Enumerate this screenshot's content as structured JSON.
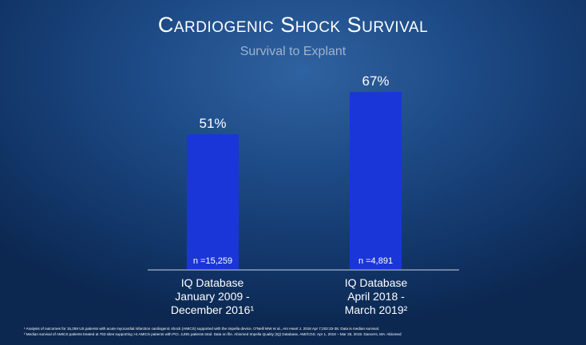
{
  "chart_data": {
    "type": "bar",
    "title": "Cardiogenic Shock Survival",
    "subtitle": "Survival to Explant",
    "categories": [
      "IQ Database\nJanuary 2009 -\nDecember 2016¹",
      "IQ Database\nApril 2018 -\nMarch 2019²"
    ],
    "values": [
      51,
      67
    ],
    "data_labels": [
      "51%",
      "67%"
    ],
    "n_labels": [
      "n =15,259",
      "n =4,891"
    ],
    "ylim": [
      0,
      100
    ],
    "grid": false,
    "bar_color": "#1a36d8"
  },
  "footnotes": [
    "¹ Analysis of outcomes for 15,259 US patients with acute myocardial infarction cardiogenic shock (AMICS) supported with the Impella device. O'Neill WW et al., Am Heart J. 2018 Apr 7;202:33-38. Data is median survival.",
    "² Median survival of AMICS patients treated at 763 sites supporting >4 AMICS patients with PCI. 4,891 patients total. Data on file. Abiomed Impella Quality (IQ) Database, AMI/CGS. Apr 1, 2018 – Mar 28, 2019. Danvers, MA: Abiomed"
  ]
}
